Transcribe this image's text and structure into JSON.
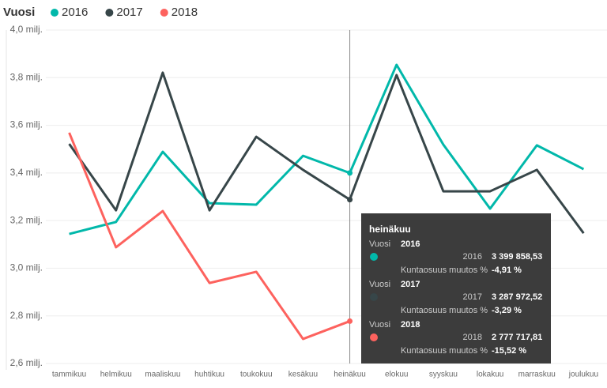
{
  "chart_data": {
    "type": "line",
    "legend_title": "Vuosi",
    "categories": [
      "tammikuu",
      "helmikuu",
      "maaliskuu",
      "huhtikuu",
      "toukokuu",
      "kesäkuu",
      "heinäkuu",
      "elokuu",
      "syyskuu",
      "lokakuu",
      "marraskuu",
      "joulukuu"
    ],
    "series": [
      {
        "name": "2016",
        "color": "#01b8aa",
        "values": [
          3.144,
          3.194,
          3.489,
          3.273,
          3.267,
          3.472,
          3.39985853,
          3.854,
          3.519,
          3.25,
          3.516,
          3.416
        ]
      },
      {
        "name": "2017",
        "color": "#374649",
        "values": [
          3.522,
          3.243,
          3.821,
          3.243,
          3.552,
          3.413,
          3.28797252,
          3.811,
          3.323,
          3.323,
          3.413,
          3.147
        ]
      },
      {
        "name": "2018",
        "color": "#fd625e",
        "values": [
          3.569,
          3.088,
          3.24,
          2.938,
          2.985,
          2.703,
          2.77771781,
          null,
          null,
          null,
          null,
          null
        ]
      }
    ],
    "ylim": [
      2.6,
      4.0
    ],
    "yticks": [
      {
        "value": 2.6,
        "label": "2,6 milj."
      },
      {
        "value": 2.8,
        "label": "2,8 milj."
      },
      {
        "value": 3.0,
        "label": "3,0 milj."
      },
      {
        "value": 3.2,
        "label": "3,2 milj."
      },
      {
        "value": 3.4,
        "label": "3,4 milj."
      },
      {
        "value": 3.6,
        "label": "3,6 milj."
      },
      {
        "value": 3.8,
        "label": "3,8 milj."
      },
      {
        "value": 4.0,
        "label": "4,0 milj."
      }
    ],
    "grid": true
  },
  "tooltip": {
    "title": "heinäkuu",
    "groups": [
      {
        "label": "Vuosi",
        "year": "2016",
        "series_label": "2016",
        "value": "3 399 858,53",
        "change_label": "Kuntaosuus muutos %",
        "change": "-4,91 %"
      },
      {
        "label": "Vuosi",
        "year": "2017",
        "series_label": "2017",
        "value": "3 287 972,52",
        "change_label": "Kuntaosuus muutos %",
        "change": "-3,29 %"
      },
      {
        "label": "Vuosi",
        "year": "2018",
        "series_label": "2018",
        "value": "2 777 717,81",
        "change_label": "Kuntaosuus muutos %",
        "change": "-15,52 %"
      }
    ]
  }
}
